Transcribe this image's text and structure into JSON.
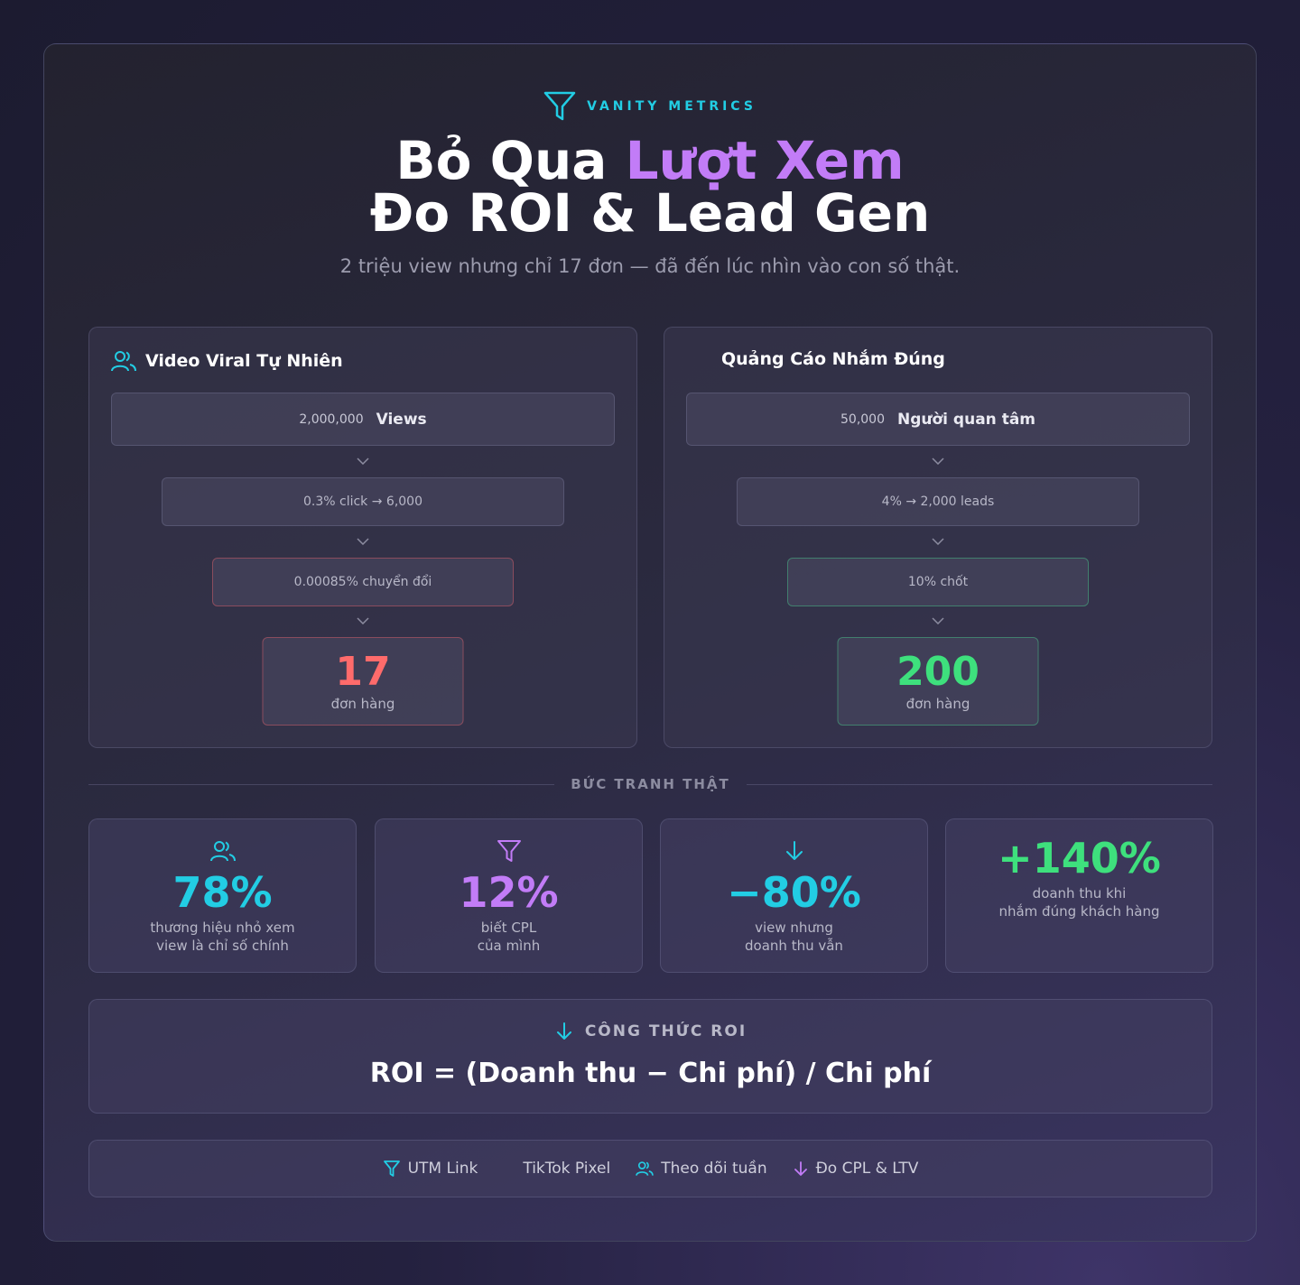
{
  "colors": {
    "accent_cyan": "#22cde4",
    "accent_purple": "#c27cf7",
    "bad_red": "#ff6b6b",
    "good_green": "#3ee07d"
  },
  "header": {
    "eyebrow": "VANITY METRICS",
    "title_part1": "Bỏ Qua ",
    "title_accent": "Lượt Xem",
    "title_line2": "Đo ROI & Lead Gen",
    "subtitle": "2 triệu view nhưng chỉ 17 đơn — đã đến lúc nhìn vào con số thật."
  },
  "left_panel": {
    "title": "Video Viral Tự Nhiên",
    "icon": "users-icon",
    "top_value": "2,000,000",
    "top_label": "Views",
    "step2": "0.3% click → 6,000",
    "step3": "0.00085% chuyển đổi",
    "result_value": "17",
    "result_label": "đơn hàng"
  },
  "right_panel": {
    "title": "Quảng Cáo Nhắm Đúng",
    "top_value": "50,000",
    "top_label": "Người quan tâm",
    "step2": "4% → 2,000 leads",
    "step3": "10% chốt",
    "result_value": "200",
    "result_label": "đơn hàng"
  },
  "divider_label": "BỨC TRANH THẬT",
  "stats": [
    {
      "icon": "users-icon",
      "value": "78%",
      "line1": "thương hiệu nhỏ xem",
      "line2": "view là chỉ số chính"
    },
    {
      "icon": "funnel-icon",
      "value": "12%",
      "line1": "biết CPL",
      "line2": "của mình"
    },
    {
      "icon": "arrow-down-icon",
      "value": "−80%",
      "line1": "view nhưng",
      "line2": "doanh thu vẫn"
    },
    {
      "icon": "",
      "value": "+140%",
      "line1": "doanh thu khi",
      "line2": "nhắm đúng khách hàng"
    }
  ],
  "formula": {
    "label": "CÔNG THỨC ROI",
    "equation": "ROI = (Doanh thu − Chi phí) / Chi phí"
  },
  "tags": [
    {
      "icon": "funnel-icon",
      "label": "UTM Link"
    },
    {
      "icon": "",
      "label": "TikTok Pixel"
    },
    {
      "icon": "users-icon",
      "label": "Theo dõi tuần"
    },
    {
      "icon": "arrow-down-icon",
      "label": "Đo CPL & LTV"
    }
  ]
}
